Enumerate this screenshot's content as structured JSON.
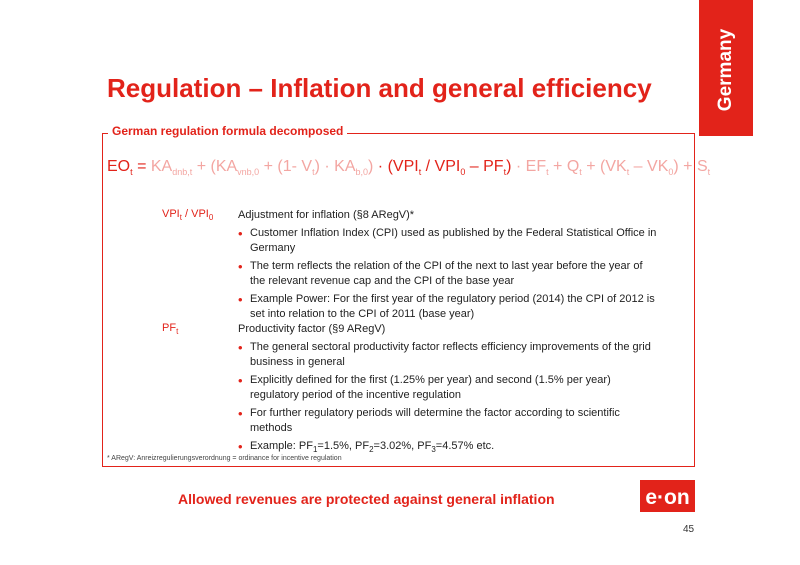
{
  "country_tab": "Germany",
  "title": "Regulation – Inflation and general efficiency",
  "section_label": "German regulation formula decomposed",
  "formula": {
    "lhs": "EO",
    "lhs_sub": "t",
    "eq": " = ",
    "f1": "KA",
    "f1_sub": "dnb,t",
    "f2": " + (KA",
    "f2_sub": "vnb,0",
    "f3": " + (1- V",
    "f3_sub": "t",
    "f4": ") · KA",
    "f4_sub": "b,0",
    "f5": ")",
    "m1": " · (VPI",
    "m1_sub": "t",
    "m2": " / VPI",
    "m2_sub": "0",
    "m3": " – PF",
    "m3_sub": "t",
    "m4": ")",
    "r1": " · EF",
    "r1_sub": "t",
    "r2": " + Q",
    "r2_sub": "t",
    "r3": " + (VK",
    "r3_sub": "t",
    "r4": " – VK",
    "r4_sub": "0",
    "r5": ") + S",
    "r5_sub": "t"
  },
  "vpi_row": {
    "label_a": "VPI",
    "label_a_sub": "t",
    "label_b": " / VPI",
    "label_b_sub": "0",
    "heading": "Adjustment for inflation  (§8 ARegV)*",
    "bullets": [
      "Customer Inflation Index (CPI) used as published by the Federal Statistical Office in Germany",
      "The term reflects the relation of the CPI of the next to last year before the year of the relevant revenue cap and the CPI of the base year",
      "Example Power: For the first year of the regulatory period (2014) the CPI of 2012 is set into relation to the CPI of 2011 (base year)"
    ]
  },
  "pf_row": {
    "label": "PF",
    "label_sub": "t",
    "heading": "Productivity factor  (§9 ARegV)",
    "bullets": [
      "The general sectoral  productivity factor reflects efficiency improvements of the grid business in general",
      "Explicitly defined for the first (1.25% per year) and second (1.5% per year) regulatory period of the incentive regulation",
      "For further regulatory periods will determine the factor according to scientific methods"
    ],
    "example": {
      "prefix": "Example: PF",
      "s1": "1",
      "v1": "=1.5%, PF",
      "s2": "2",
      "v2": "=3.02%, PF",
      "s3": "3",
      "v3": "=4.57% etc."
    }
  },
  "footnote": "* ARegV: Anreizregulierungsverordnung = ordinance for incentive regulation",
  "conclusion": "Allowed revenues are protected against general inflation",
  "logo_text": "e·on",
  "page_number": "45",
  "colors": {
    "accent": "#e2231a",
    "faded": "#f3a6a2"
  }
}
